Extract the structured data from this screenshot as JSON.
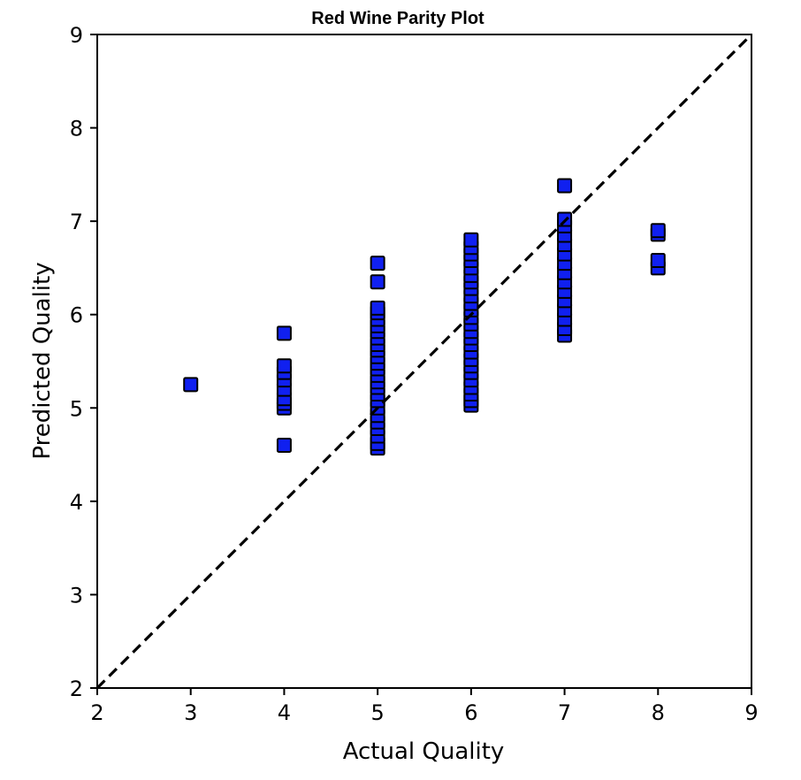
{
  "chart_data": {
    "type": "scatter",
    "title": "Red Wine Parity Plot",
    "xlabel": "Actual Quality",
    "ylabel": "Predicted Quality",
    "xlim": [
      2,
      9
    ],
    "ylim": [
      2,
      9
    ],
    "x_ticks": [
      "2",
      "3",
      "4",
      "5",
      "6",
      "7",
      "8",
      "9"
    ],
    "y_ticks": [
      "2",
      "3",
      "4",
      "5",
      "6",
      "7",
      "8",
      "9"
    ],
    "grid": false,
    "legend": "none",
    "marker": "square",
    "marker_color": "#1020f0",
    "marker_edge_color": "#000000",
    "reference_line": {
      "style": "dashed",
      "color": "#000000",
      "from": [
        2,
        2
      ],
      "to": [
        9,
        9
      ]
    },
    "points": [
      [
        3,
        5.25
      ],
      [
        4,
        4.6
      ],
      [
        4,
        5.0
      ],
      [
        4,
        5.05
      ],
      [
        4,
        5.1
      ],
      [
        4,
        5.2
      ],
      [
        4,
        5.3
      ],
      [
        4,
        5.38
      ],
      [
        4,
        5.45
      ],
      [
        4,
        5.8
      ],
      [
        5,
        4.57
      ],
      [
        5,
        4.62
      ],
      [
        5,
        4.7
      ],
      [
        5,
        4.78
      ],
      [
        5,
        4.85
      ],
      [
        5,
        4.92
      ],
      [
        5,
        5.0
      ],
      [
        5,
        5.08
      ],
      [
        5,
        5.15
      ],
      [
        5,
        5.22
      ],
      [
        5,
        5.28
      ],
      [
        5,
        5.35
      ],
      [
        5,
        5.42
      ],
      [
        5,
        5.48
      ],
      [
        5,
        5.55
      ],
      [
        5,
        5.62
      ],
      [
        5,
        5.68
      ],
      [
        5,
        5.75
      ],
      [
        5,
        5.82
      ],
      [
        5,
        5.88
      ],
      [
        5,
        5.95
      ],
      [
        5,
        6.02
      ],
      [
        5,
        6.07
      ],
      [
        5,
        6.35
      ],
      [
        5,
        6.55
      ],
      [
        6,
        5.03
      ],
      [
        6,
        5.08
      ],
      [
        6,
        5.15
      ],
      [
        6,
        5.22
      ],
      [
        6,
        5.3
      ],
      [
        6,
        5.38
      ],
      [
        6,
        5.45
      ],
      [
        6,
        5.52
      ],
      [
        6,
        5.6
      ],
      [
        6,
        5.68
      ],
      [
        6,
        5.75
      ],
      [
        6,
        5.82
      ],
      [
        6,
        5.9
      ],
      [
        6,
        5.97
      ],
      [
        6,
        6.05
      ],
      [
        6,
        6.12
      ],
      [
        6,
        6.2
      ],
      [
        6,
        6.28
      ],
      [
        6,
        6.35
      ],
      [
        6,
        6.42
      ],
      [
        6,
        6.5
      ],
      [
        6,
        6.58
      ],
      [
        6,
        6.65
      ],
      [
        6,
        6.72
      ],
      [
        6,
        6.8
      ],
      [
        7,
        5.78
      ],
      [
        7,
        5.85
      ],
      [
        7,
        5.95
      ],
      [
        7,
        6.05
      ],
      [
        7,
        6.15
      ],
      [
        7,
        6.25
      ],
      [
        7,
        6.35
      ],
      [
        7,
        6.45
      ],
      [
        7,
        6.55
      ],
      [
        7,
        6.65
      ],
      [
        7,
        6.75
      ],
      [
        7,
        6.85
      ],
      [
        7,
        6.95
      ],
      [
        7,
        7.02
      ],
      [
        7,
        7.38
      ],
      [
        8,
        6.5
      ],
      [
        8,
        6.58
      ],
      [
        8,
        6.86
      ],
      [
        8,
        6.9
      ]
    ]
  }
}
